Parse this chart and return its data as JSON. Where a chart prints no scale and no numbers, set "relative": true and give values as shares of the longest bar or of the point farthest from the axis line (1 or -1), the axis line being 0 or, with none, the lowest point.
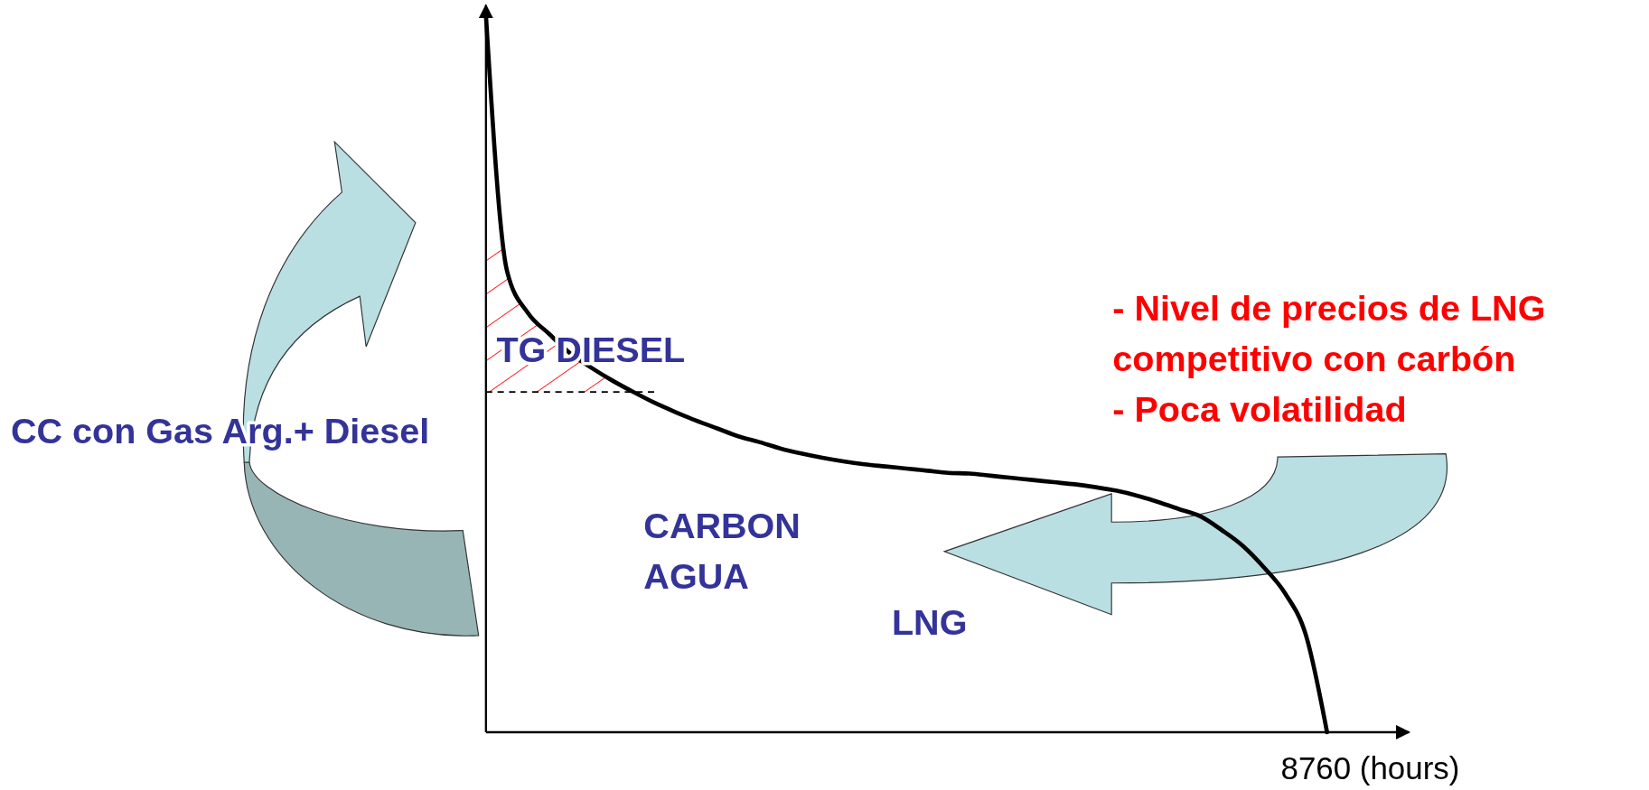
{
  "chart_data": {
    "type": "line",
    "relative": true,
    "categories": [
      null,
      null,
      null,
      null,
      null,
      null,
      null,
      null,
      null,
      null,
      null,
      null,
      null,
      null,
      null,
      null,
      null,
      null,
      null,
      null,
      null,
      null,
      null,
      null,
      null,
      null,
      null,
      null,
      null,
      null,
      null,
      null,
      null,
      null,
      null,
      null,
      null,
      null,
      null,
      null,
      null
    ],
    "series": [
      {
        "color": "#000000",
        "values": [
          1.0,
          0.644,
          0.585,
          0.556,
          0.529,
          0.509,
          0.491,
          0.475,
          0.46,
          0.447,
          0.435,
          0.424,
          0.413,
          0.405,
          0.396,
          0.389,
          0.383,
          0.378,
          0.374,
          0.371,
          0.368,
          0.365,
          0.362,
          0.361,
          0.358,
          0.355,
          0.352,
          0.349,
          0.346,
          0.342,
          0.337,
          0.33,
          0.321,
          0.311,
          0.301,
          0.282,
          0.26,
          0.23,
          0.194,
          0.135,
          0
        ]
      }
    ],
    "marker": "none",
    "line_style": "solid",
    "ref_lines": [
      {
        "axis": "y",
        "value": 0.475,
        "color": "#000000",
        "line_style": "dashed"
      }
    ],
    "bands": [
      {
        "axis": "y",
        "from": 0.475,
        "to": 0.68,
        "color": "#ff0000"
      }
    ],
    "annotations": [
      "TG DIESEL",
      "CARBON\nAGUA",
      "LNG",
      "CC con Gas Arg.+ Diesel",
      "- Nivel de precios de LNG\ncompetitivo con carbón\n- Poca volatilidad",
      "8760 (hours)"
    ]
  }
}
